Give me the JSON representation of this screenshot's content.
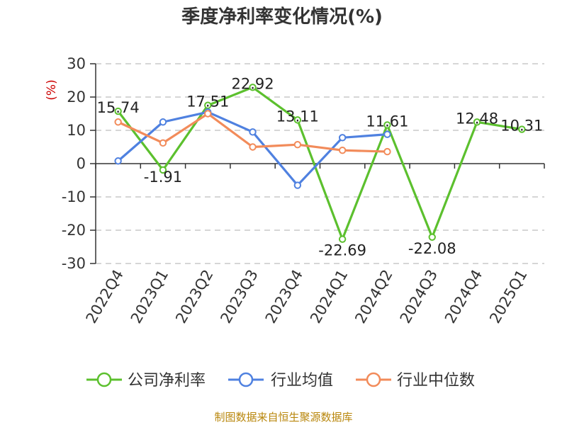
{
  "chart_data": {
    "type": "line",
    "title": "季度净利率变化情况(%)",
    "ylabel": "(%)",
    "ylim": [
      -30,
      30
    ],
    "yticks": [
      30,
      20,
      10,
      0,
      -10,
      -20,
      -30
    ],
    "grid": true,
    "legend_position": "bottom",
    "categories": [
      "2022Q4",
      "2023Q1",
      "2023Q2",
      "2023Q3",
      "2023Q4",
      "2024Q1",
      "2024Q2",
      "2024Q3",
      "2024Q4",
      "2025Q1"
    ],
    "series": [
      {
        "name": "公司净利率",
        "color": "#5cc02e",
        "values": [
          15.74,
          -1.91,
          17.51,
          22.92,
          13.11,
          -22.69,
          11.61,
          -22.08,
          12.48,
          10.31
        ],
        "labels": [
          "15.74",
          "-1.91",
          "17.51",
          "22.92",
          "13.11",
          "-22.69",
          "11.61",
          "-22.08",
          "12.48",
          "10.31"
        ]
      },
      {
        "name": "行业均值",
        "color": "#4f81e0",
        "values": [
          0.8,
          12.5,
          15.5,
          9.5,
          -6.5,
          7.8,
          8.8,
          null,
          null,
          null
        ]
      },
      {
        "name": "行业中位数",
        "color": "#f28b5a",
        "values": [
          12.5,
          6.2,
          15.0,
          5.0,
          5.7,
          4.0,
          3.6,
          null,
          null,
          null
        ]
      }
    ]
  },
  "footer": {
    "source": "制图数据来自恒生聚源数据库"
  }
}
